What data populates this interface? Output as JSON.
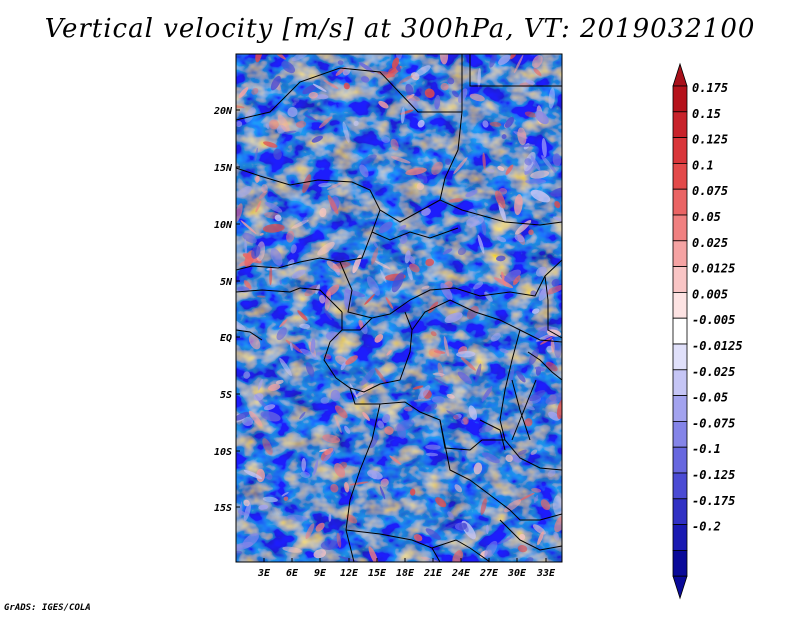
{
  "title": "Vertical velocity [m/s] at 300hPa, VT: 2019032100",
  "credit": "GrADS: IGES/COLA",
  "map": {
    "variable": "Vertical velocity",
    "units": "m/s",
    "level": "300hPa",
    "valid_time": "2019032100",
    "lat_labels": [
      "20N",
      "15N",
      "10N",
      "5N",
      "EQ",
      "5S",
      "10S",
      "15S"
    ],
    "lon_labels": [
      "3E",
      "6E",
      "9E",
      "12E",
      "15E",
      "18E",
      "21E",
      "24E",
      "27E",
      "30E",
      "33E"
    ]
  },
  "colorbar": {
    "labels": [
      "0.175",
      "0.15",
      "0.125",
      "0.1",
      "0.075",
      "0.05",
      "0.025",
      "0.0125",
      "0.005",
      "-0.005",
      "-0.0125",
      "-0.025",
      "-0.05",
      "-0.075",
      "-0.1",
      "-0.125",
      "-0.175",
      "-0.2"
    ],
    "colors": [
      "#b5121b",
      "#c8232b",
      "#d9363a",
      "#e34a4a",
      "#ea6464",
      "#f08080",
      "#f5a3a3",
      "#f9c5c5",
      "#fde3e3",
      "#ffffff",
      "#e0e0fa",
      "#c5c5f5",
      "#a3a3ef",
      "#8484e8",
      "#6767df",
      "#4b4bd4",
      "#3131c4",
      "#1a1ab2",
      "#0a0a99"
    ],
    "top_arrow_color": "#a8101a",
    "bottom_arrow_color": "#0a0a99"
  }
}
